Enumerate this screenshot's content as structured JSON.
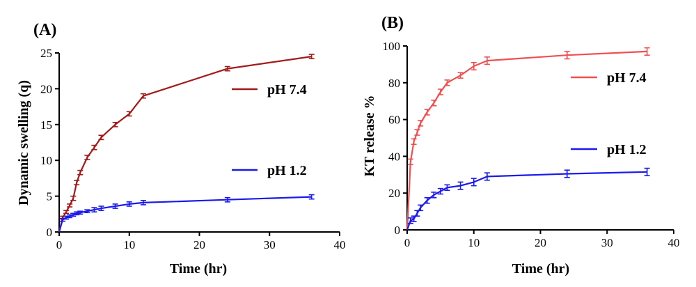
{
  "chart_data": [
    {
      "panel_label": "(A)",
      "type": "line",
      "xlabel": "Time (hr)",
      "ylabel": "Dynamic swelling (q)",
      "xlim": [
        0,
        40
      ],
      "ylim": [
        0,
        25
      ],
      "xticks": [
        0,
        10,
        20,
        30,
        40
      ],
      "yticks": [
        0,
        5,
        10,
        15,
        20,
        25
      ],
      "grid": false,
      "legend_position": "right",
      "series": [
        {
          "name": "pH 7.4",
          "color": "#a31a1a",
          "x": [
            0,
            0.5,
            1,
            1.5,
            2,
            2.5,
            3,
            4,
            5,
            6,
            8,
            10,
            12,
            24,
            36
          ],
          "y": [
            0,
            2.0,
            2.8,
            3.7,
            4.7,
            6.9,
            8.3,
            10.4,
            11.8,
            13.2,
            15.0,
            16.5,
            19.0,
            22.8,
            24.5
          ],
          "err": [
            0,
            0.2,
            0.2,
            0.2,
            0.3,
            0.3,
            0.3,
            0.3,
            0.3,
            0.3,
            0.3,
            0.3,
            0.3,
            0.3,
            0.3
          ]
        },
        {
          "name": "pH 1.2",
          "color": "#1a1aee",
          "x": [
            0,
            0.5,
            1,
            1.5,
            2,
            2.5,
            3,
            4,
            5,
            6,
            8,
            10,
            12,
            24,
            36
          ],
          "y": [
            0,
            1.7,
            2.0,
            2.2,
            2.4,
            2.6,
            2.7,
            2.9,
            3.1,
            3.3,
            3.6,
            3.9,
            4.1,
            4.5,
            4.9
          ],
          "err": [
            0,
            0.2,
            0.2,
            0.2,
            0.2,
            0.2,
            0.2,
            0.2,
            0.3,
            0.3,
            0.3,
            0.3,
            0.3,
            0.3,
            0.3
          ]
        }
      ]
    },
    {
      "panel_label": "(B)",
      "type": "line",
      "xlabel": "Time (hr)",
      "ylabel": "KT release %",
      "xlim": [
        0,
        40
      ],
      "ylim": [
        0,
        100
      ],
      "xticks": [
        0,
        10,
        20,
        30,
        40
      ],
      "yticks": [
        0,
        20,
        40,
        60,
        80,
        100
      ],
      "grid": false,
      "legend_position": "right",
      "series": [
        {
          "name": "pH 7.4",
          "color": "#f05050",
          "x": [
            0,
            0.5,
            1,
            1.5,
            2,
            3,
            4,
            5,
            6,
            8,
            10,
            12,
            24,
            36
          ],
          "y": [
            0,
            37,
            48,
            53,
            58,
            64,
            69,
            75,
            80,
            84,
            89,
            92,
            95,
            97
          ],
          "err": [
            0,
            1.5,
            1.5,
            1.5,
            1.5,
            1.5,
            1.5,
            1.5,
            1.5,
            1.5,
            2,
            2,
            2,
            2
          ]
        },
        {
          "name": "pH 1.2",
          "color": "#1a1aee",
          "x": [
            0,
            0.5,
            1,
            1.5,
            2,
            3,
            4,
            5,
            6,
            8,
            10,
            12,
            24,
            36
          ],
          "y": [
            0,
            5,
            6,
            9,
            12,
            16,
            19,
            21,
            23,
            24,
            26,
            29,
            30.5,
            31.5
          ],
          "err": [
            0,
            1.5,
            1.5,
            1.5,
            1.5,
            1.5,
            1.5,
            1.5,
            1.5,
            2,
            2,
            2,
            2,
            2
          ]
        }
      ]
    }
  ]
}
